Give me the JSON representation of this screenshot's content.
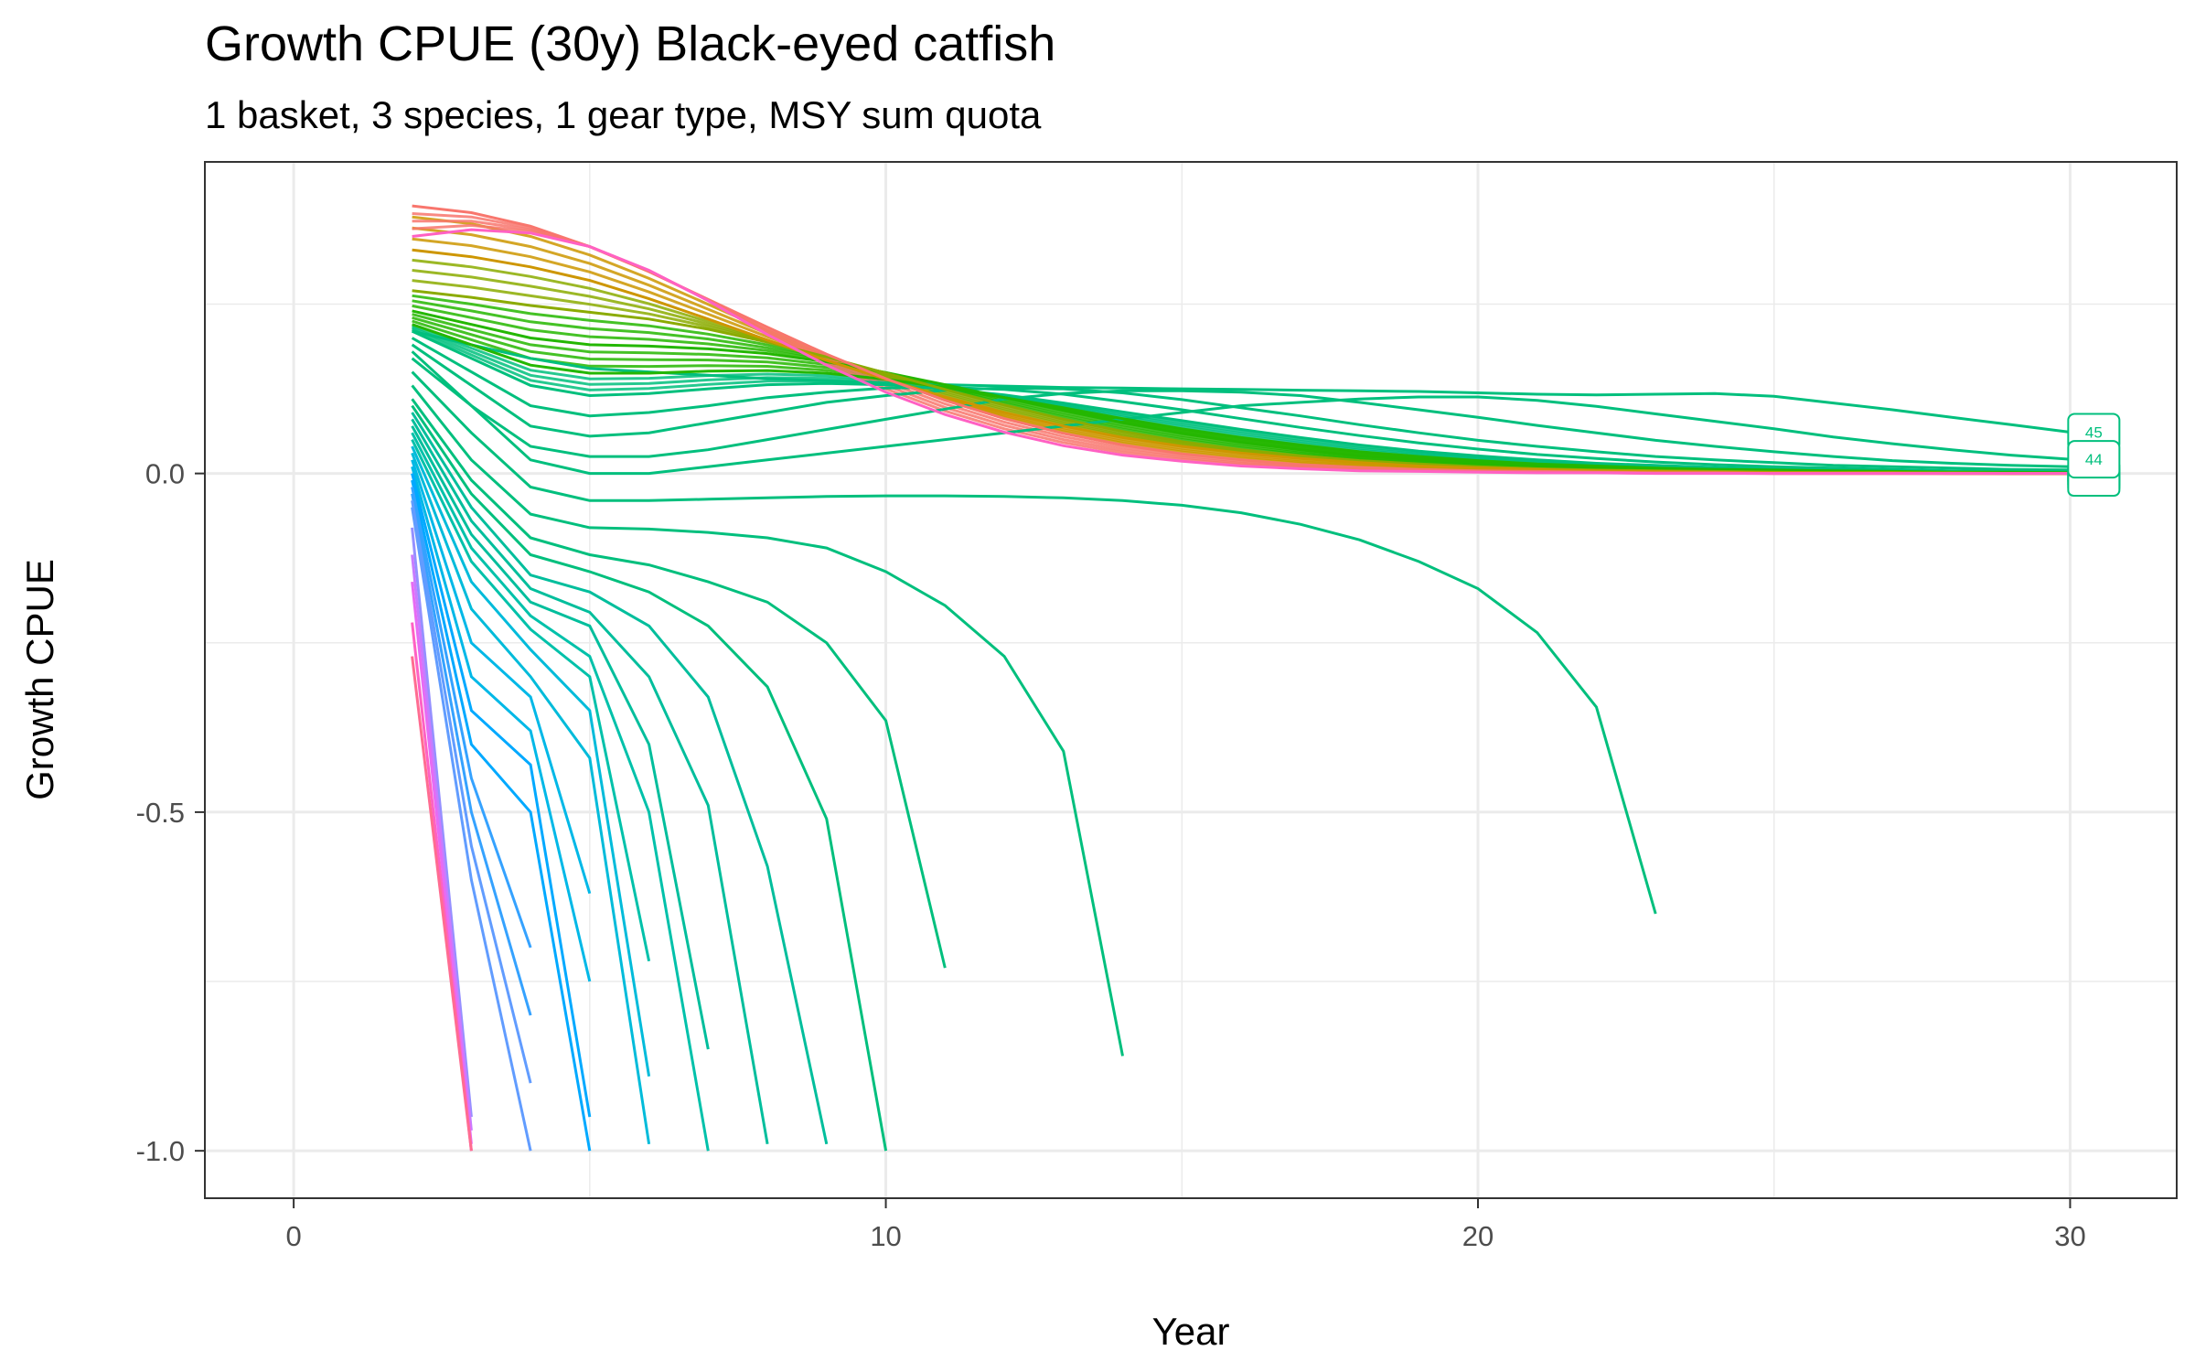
{
  "chart_data": {
    "type": "line",
    "title": "Growth CPUE (30y) Black-eyed catfish",
    "subtitle": "1 basket, 3 species, 1 gear type, MSY sum quota",
    "xlabel": "Year",
    "ylabel": "Growth CPUE",
    "xlim": [
      -1.5,
      31.8
    ],
    "ylim": [
      -1.07,
      0.46
    ],
    "x_ticks": [
      0,
      10,
      20,
      30
    ],
    "x_tick_labels": [
      "0",
      "10",
      "20",
      "30"
    ],
    "y_ticks": [
      -1.0,
      -0.5,
      0.0
    ],
    "y_tick_labels": [
      "-1.0",
      "-0.5",
      "0.0"
    ],
    "grid": true,
    "legend": "none",
    "end_labels": [
      {
        "text": "45",
        "x": 30.4,
        "y": 0.061,
        "color": "#00BF7D"
      },
      {
        "text": "44",
        "x": 30.4,
        "y": 0.021,
        "color": "#00BF7D"
      }
    ],
    "series": [
      {
        "color": "#00BF7D",
        "x": [
          2,
          3,
          4,
          5,
          6,
          7,
          8,
          9,
          10,
          11,
          12,
          13,
          14,
          15,
          16,
          17,
          18,
          19,
          20,
          21,
          22,
          23,
          24,
          25,
          26,
          27,
          28,
          29,
          30
        ],
        "values": [
          0.21,
          0.19,
          0.17,
          0.155,
          0.15,
          0.145,
          0.14,
          0.137,
          0.134,
          0.131,
          0.129,
          0.127,
          0.126,
          0.125,
          0.124,
          0.123,
          0.122,
          0.121,
          0.119,
          0.117,
          0.116,
          0.117,
          0.118,
          0.114,
          0.104,
          0.094,
          0.083,
          0.072,
          0.061
        ]
      },
      {
        "color": "#00BF7D",
        "x": [
          2,
          3,
          4,
          5,
          6,
          7,
          8,
          9,
          10,
          11,
          12,
          13,
          14,
          15,
          16,
          17,
          18,
          19,
          20,
          21,
          22,
          23,
          24,
          25,
          26,
          27,
          28,
          29,
          30
        ],
        "values": [
          0.18,
          0.1,
          0.02,
          0.0,
          0.0,
          0.01,
          0.02,
          0.03,
          0.04,
          0.05,
          0.06,
          0.07,
          0.08,
          0.09,
          0.1,
          0.105,
          0.11,
          0.113,
          0.113,
          0.108,
          0.099,
          0.088,
          0.077,
          0.066,
          0.054,
          0.044,
          0.035,
          0.027,
          0.021
        ]
      },
      {
        "color": "#00BF7D",
        "x": [
          2,
          3,
          4,
          5,
          6,
          7,
          8,
          9,
          10,
          11,
          12,
          13,
          14,
          15,
          16,
          17,
          18,
          19,
          20,
          21,
          22,
          23,
          24,
          25,
          26,
          27,
          28,
          29,
          30
        ],
        "values": [
          0.17,
          0.1,
          0.04,
          0.025,
          0.025,
          0.035,
          0.05,
          0.065,
          0.08,
          0.095,
          0.11,
          0.118,
          0.122,
          0.122,
          0.12,
          0.115,
          0.105,
          0.094,
          0.083,
          0.071,
          0.06,
          0.049,
          0.04,
          0.032,
          0.025,
          0.019,
          0.015,
          0.012,
          0.01
        ]
      },
      {
        "color": "#00BF7D",
        "x": [
          2,
          3,
          4,
          5,
          6,
          7,
          8,
          9,
          10,
          11,
          12,
          13,
          14,
          15,
          16,
          17,
          18,
          19,
          20,
          21,
          22,
          23,
          24,
          25,
          26,
          27,
          28,
          29,
          30
        ],
        "values": [
          0.19,
          0.13,
          0.07,
          0.055,
          0.06,
          0.075,
          0.09,
          0.105,
          0.115,
          0.123,
          0.126,
          0.125,
          0.119,
          0.109,
          0.097,
          0.085,
          0.072,
          0.06,
          0.049,
          0.04,
          0.032,
          0.025,
          0.02,
          0.016,
          0.012,
          0.01,
          0.008,
          0.006,
          0.005
        ]
      },
      {
        "color": "#00BF7D",
        "x": [
          2,
          3,
          4,
          5,
          6,
          7,
          8,
          9,
          10,
          11,
          12,
          13,
          14,
          15,
          16,
          17,
          18,
          19,
          20,
          21,
          22,
          23,
          24,
          25,
          26,
          27,
          28,
          29,
          30
        ],
        "values": [
          0.2,
          0.15,
          0.1,
          0.085,
          0.09,
          0.1,
          0.112,
          0.12,
          0.126,
          0.127,
          0.124,
          0.117,
          0.106,
          0.094,
          0.081,
          0.068,
          0.056,
          0.045,
          0.036,
          0.028,
          0.022,
          0.017,
          0.013,
          0.01,
          0.008,
          0.006,
          0.004,
          0.003,
          0.003
        ]
      },
      {
        "color": "#00BF7D",
        "x": [
          2,
          3,
          4,
          5,
          6,
          7,
          8,
          9,
          10,
          11,
          12,
          13,
          14,
          15,
          16,
          17,
          18,
          19,
          20,
          21,
          22,
          23,
          24,
          25,
          26,
          27,
          28,
          29,
          30
        ],
        "values": [
          0.21,
          0.17,
          0.13,
          0.115,
          0.118,
          0.125,
          0.131,
          0.133,
          0.131,
          0.125,
          0.116,
          0.104,
          0.091,
          0.078,
          0.065,
          0.053,
          0.042,
          0.033,
          0.026,
          0.02,
          0.015,
          0.012,
          0.009,
          0.007,
          0.005,
          0.004,
          0.003,
          0.002,
          0.002
        ]
      },
      {
        "color": "#24B700",
        "x": [
          2,
          3,
          4,
          5,
          6,
          7,
          8,
          9,
          10,
          11,
          12,
          13,
          14,
          15,
          16,
          17,
          18,
          19,
          20,
          21,
          22,
          23,
          24,
          25,
          26,
          27,
          28,
          29,
          30
        ],
        "values": [
          0.22,
          0.19,
          0.16,
          0.148,
          0.148,
          0.151,
          0.152,
          0.148,
          0.139,
          0.127,
          0.112,
          0.097,
          0.081,
          0.066,
          0.053,
          0.042,
          0.032,
          0.025,
          0.019,
          0.014,
          0.011,
          0.008,
          0.006,
          0.005,
          0.004,
          0.003,
          0.002,
          0.002,
          0.001
        ]
      },
      {
        "color": "#24B700",
        "x": [
          2,
          3,
          4,
          5,
          6,
          7,
          8,
          9,
          10,
          11,
          12,
          13,
          14,
          15,
          16,
          17,
          18,
          19,
          20,
          21,
          22,
          23,
          24,
          25,
          26,
          27,
          28,
          29,
          30
        ],
        "values": [
          0.24,
          0.22,
          0.2,
          0.19,
          0.188,
          0.184,
          0.177,
          0.165,
          0.149,
          0.131,
          0.112,
          0.093,
          0.075,
          0.059,
          0.046,
          0.035,
          0.026,
          0.02,
          0.015,
          0.011,
          0.008,
          0.006,
          0.004,
          0.003,
          0.002,
          0.002,
          0.001,
          0.001,
          0.001
        ]
      },
      {
        "color": "#8BAB00",
        "x": [
          2,
          3,
          4,
          5,
          6,
          7,
          8,
          9,
          10,
          11,
          12,
          13,
          14,
          15,
          16,
          17,
          18,
          19,
          20,
          21,
          22,
          23,
          24,
          25,
          26,
          27,
          28,
          29,
          30
        ],
        "values": [
          0.27,
          0.26,
          0.248,
          0.238,
          0.228,
          0.213,
          0.194,
          0.172,
          0.148,
          0.124,
          0.101,
          0.08,
          0.062,
          0.047,
          0.035,
          0.026,
          0.019,
          0.014,
          0.01,
          0.007,
          0.005,
          0.004,
          0.003,
          0.002,
          0.001,
          0.001,
          0.001,
          0.0,
          0.0
        ]
      },
      {
        "color": "#CD9600",
        "x": [
          2,
          3,
          4,
          5,
          6,
          7,
          8,
          9,
          10,
          11,
          12,
          13,
          14,
          15,
          16,
          17,
          18,
          19,
          20,
          21,
          22,
          23,
          24,
          25,
          26,
          27,
          28,
          29,
          30
        ],
        "values": [
          0.33,
          0.32,
          0.305,
          0.285,
          0.258,
          0.228,
          0.197,
          0.167,
          0.139,
          0.113,
          0.09,
          0.07,
          0.053,
          0.04,
          0.03,
          0.022,
          0.016,
          0.011,
          0.008,
          0.006,
          0.004,
          0.003,
          0.002,
          0.001,
          0.001,
          0.001,
          0.0,
          0.0,
          0.0
        ]
      },
      {
        "color": "#F8766D",
        "x": [
          2,
          3,
          4,
          5,
          6,
          7,
          8,
          9,
          10,
          11,
          12,
          13,
          14,
          15,
          16,
          17,
          18,
          19,
          20,
          21,
          22,
          23,
          24,
          25,
          26,
          27,
          28,
          29,
          30
        ],
        "values": [
          0.395,
          0.385,
          0.365,
          0.335,
          0.298,
          0.257,
          0.216,
          0.176,
          0.14,
          0.108,
          0.081,
          0.059,
          0.042,
          0.029,
          0.02,
          0.013,
          0.009,
          0.006,
          0.004,
          0.003,
          0.002,
          0.001,
          0.001,
          0.0,
          0.0,
          0.0,
          0.0,
          0.0,
          0.0
        ]
      },
      {
        "color": "#FF61C3",
        "x": [
          2,
          3,
          4,
          5,
          6,
          7,
          8,
          9,
          10,
          11,
          12,
          13,
          14,
          15,
          16,
          17,
          18,
          19,
          20,
          21,
          22,
          23,
          24,
          25,
          26,
          27,
          28,
          29,
          30
        ],
        "values": [
          0.35,
          0.36,
          0.355,
          0.335,
          0.3,
          0.255,
          0.205,
          0.16,
          0.12,
          0.087,
          0.061,
          0.041,
          0.027,
          0.018,
          0.011,
          0.007,
          0.004,
          0.003,
          0.002,
          0.001,
          0.001,
          0.0,
          0.0,
          0.0,
          0.0,
          0.0,
          0.0,
          0.0,
          0.0
        ]
      },
      {
        "color": "#00BF7D",
        "x": [
          2,
          3,
          4,
          5,
          6,
          7,
          8,
          9,
          10,
          11,
          12,
          13,
          14,
          15,
          16,
          17,
          18,
          19,
          20,
          21,
          22,
          23
        ],
        "values": [
          0.15,
          0.06,
          -0.02,
          -0.04,
          -0.04,
          -0.038,
          -0.036,
          -0.034,
          -0.033,
          -0.033,
          -0.034,
          -0.036,
          -0.04,
          -0.047,
          -0.058,
          -0.075,
          -0.098,
          -0.13,
          -0.17,
          -0.235,
          -0.345,
          -0.65
        ]
      },
      {
        "color": "#00BF7D",
        "x": [
          2,
          3,
          4,
          5,
          6,
          7,
          8,
          9,
          10,
          11,
          12,
          13,
          14
        ],
        "values": [
          0.13,
          0.02,
          -0.06,
          -0.08,
          -0.082,
          -0.087,
          -0.095,
          -0.11,
          -0.145,
          -0.195,
          -0.27,
          -0.41,
          -0.86
        ]
      },
      {
        "color": "#00BF7D",
        "x": [
          2,
          3,
          4,
          5,
          6,
          7,
          8,
          9,
          10,
          11
        ],
        "values": [
          0.11,
          -0.01,
          -0.095,
          -0.12,
          -0.135,
          -0.16,
          -0.19,
          -0.25,
          -0.365,
          -0.73
        ]
      },
      {
        "color": "#00BF7D",
        "x": [
          2,
          3,
          4,
          5,
          6,
          7,
          8,
          9,
          10
        ],
        "values": [
          0.1,
          -0.03,
          -0.12,
          -0.145,
          -0.175,
          -0.225,
          -0.315,
          -0.51,
          -1.0
        ]
      },
      {
        "color": "#00BE9C",
        "x": [
          2,
          3,
          4,
          5,
          6,
          7,
          8,
          9
        ],
        "values": [
          0.09,
          -0.05,
          -0.15,
          -0.175,
          -0.225,
          -0.33,
          -0.58,
          -0.99
        ]
      },
      {
        "color": "#00BE9C",
        "x": [
          2,
          3,
          4,
          5,
          6,
          7,
          8
        ],
        "values": [
          0.08,
          -0.07,
          -0.17,
          -0.205,
          -0.3,
          -0.49,
          -0.99
        ]
      },
      {
        "color": "#00BE9C",
        "x": [
          2,
          3,
          4,
          5,
          6,
          7
        ],
        "values": [
          0.07,
          -0.09,
          -0.19,
          -0.225,
          -0.4,
          -0.85
        ]
      },
      {
        "color": "#00C1AA",
        "x": [
          2,
          3,
          4,
          5,
          6,
          7
        ],
        "values": [
          0.06,
          -0.11,
          -0.21,
          -0.27,
          -0.5,
          -1.0
        ]
      },
      {
        "color": "#00C1AA",
        "x": [
          2,
          3,
          4,
          5,
          6
        ],
        "values": [
          0.05,
          -0.13,
          -0.23,
          -0.3,
          -0.72
        ]
      },
      {
        "color": "#00BBDA",
        "x": [
          2,
          3,
          4,
          5,
          6
        ],
        "values": [
          0.04,
          -0.16,
          -0.26,
          -0.35,
          -0.89
        ]
      },
      {
        "color": "#00BBDA",
        "x": [
          2,
          3,
          4,
          5,
          6
        ],
        "values": [
          0.03,
          -0.2,
          -0.3,
          -0.42,
          -0.99
        ]
      },
      {
        "color": "#00B8E7",
        "x": [
          2,
          3,
          4,
          5
        ],
        "values": [
          0.02,
          -0.25,
          -0.33,
          -0.62
        ]
      },
      {
        "color": "#00B8E7",
        "x": [
          2,
          3,
          4,
          5
        ],
        "values": [
          0.01,
          -0.3,
          -0.38,
          -0.75
        ]
      },
      {
        "color": "#00A9FF",
        "x": [
          2,
          3,
          4,
          5
        ],
        "values": [
          0.0,
          -0.35,
          -0.43,
          -0.95
        ]
      },
      {
        "color": "#00A9FF",
        "x": [
          2,
          3,
          4,
          5
        ],
        "values": [
          -0.01,
          -0.4,
          -0.5,
          -1.0
        ]
      },
      {
        "color": "#35A2FF",
        "x": [
          2,
          3,
          4
        ],
        "values": [
          -0.02,
          -0.45,
          -0.7
        ]
      },
      {
        "color": "#35A2FF",
        "x": [
          2,
          3,
          4
        ],
        "values": [
          -0.03,
          -0.5,
          -0.8
        ]
      },
      {
        "color": "#619CFF",
        "x": [
          2,
          3,
          4
        ],
        "values": [
          -0.04,
          -0.55,
          -0.9
        ]
      },
      {
        "color": "#619CFF",
        "x": [
          2,
          3,
          4
        ],
        "values": [
          -0.05,
          -0.6,
          -1.0
        ]
      },
      {
        "color": "#9590FF",
        "x": [
          2,
          3
        ],
        "values": [
          -0.08,
          -0.95
        ]
      },
      {
        "color": "#C77CFF",
        "x": [
          2,
          3
        ],
        "values": [
          -0.12,
          -0.97
        ]
      },
      {
        "color": "#E76BF3",
        "x": [
          2,
          3
        ],
        "values": [
          -0.16,
          -0.99
        ]
      },
      {
        "color": "#FF61C3",
        "x": [
          2,
          3
        ],
        "values": [
          -0.22,
          -1.0
        ]
      },
      {
        "color": "#FF6C91",
        "x": [
          2,
          3
        ],
        "values": [
          -0.27,
          -1.0
        ]
      }
    ]
  }
}
